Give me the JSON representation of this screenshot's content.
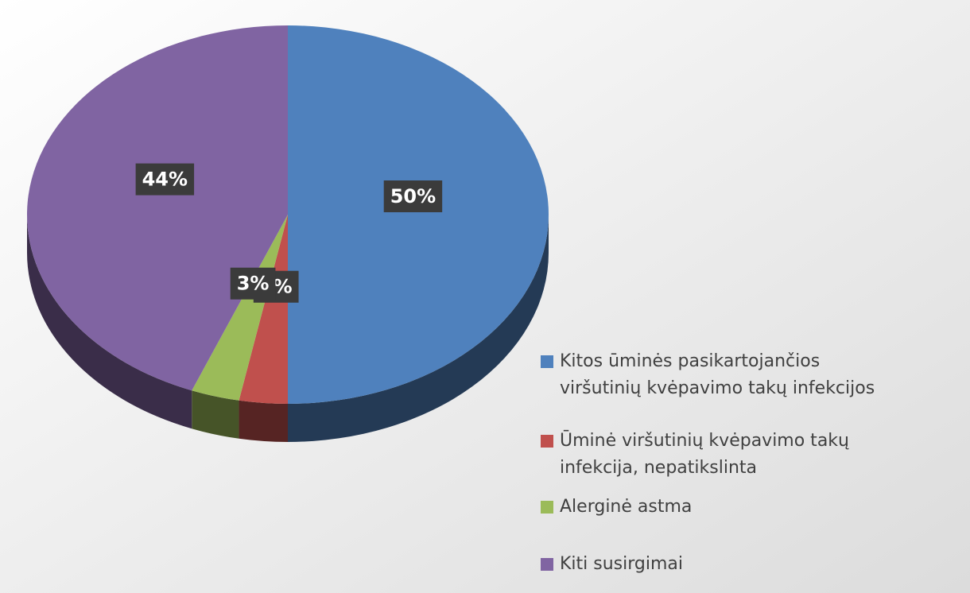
{
  "chart_data": {
    "type": "pie",
    "categories": [
      "Kitos ūminės pasikartojančios viršutinių kvėpavimo takų infekcijos",
      "Ūminė viršutinių kvėpavimo takų infekcija, nepatikslinta",
      "Alerginė astma",
      "Kiti susirgimai"
    ],
    "values": [
      50,
      3,
      3,
      44
    ],
    "value_labels": [
      "50%",
      "3%",
      "3%",
      "44%"
    ],
    "colors": [
      "#4f81bd",
      "#c0504d",
      "#9bbb59",
      "#8064a2"
    ],
    "legend": "right"
  }
}
